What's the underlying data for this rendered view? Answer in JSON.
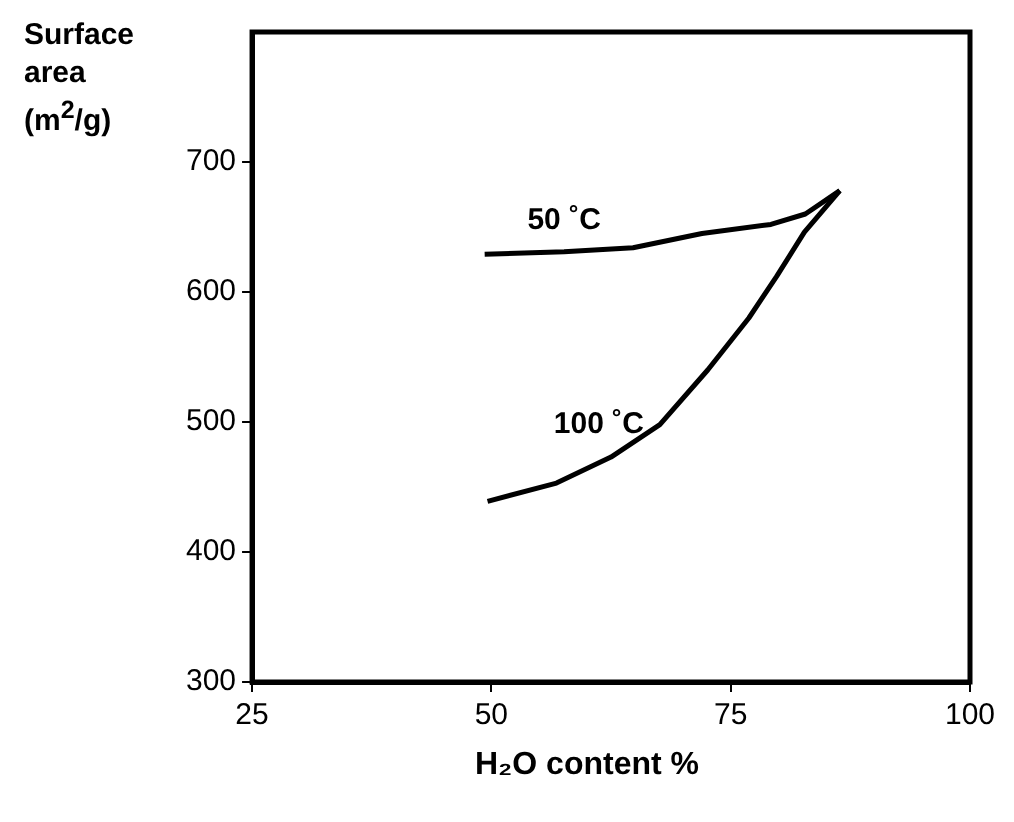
{
  "chart_data": {
    "type": "line",
    "xlabel": "H₂O content %",
    "ylabel": "Surface area (m$^{2}$/g)",
    "xlim": [
      25,
      100
    ],
    "xticks": [
      25,
      50,
      75,
      100
    ],
    "ylim": [
      300,
      800
    ],
    "yticks": [
      300,
      400,
      500,
      600,
      700
    ],
    "grid": false,
    "legend": false,
    "marker": "none",
    "line_style": "solid",
    "series": [
      {
        "name": "50 ˚C",
        "color": "#000000",
        "x": [
          49.3,
          57.6,
          64.8,
          72,
          79.2,
          82.8,
          86.4
        ],
        "values": [
          629,
          631,
          634,
          645,
          652,
          660,
          678
        ]
      },
      {
        "name": "100 ˚C",
        "color": "#000000",
        "x": [
          49.6,
          56.8,
          62.5,
          67.6,
          72.6,
          76.9,
          79.8,
          82.7,
          86.4
        ],
        "values": [
          439,
          453,
          473,
          498,
          540,
          580,
          612,
          646,
          678
        ]
      }
    ]
  }
}
